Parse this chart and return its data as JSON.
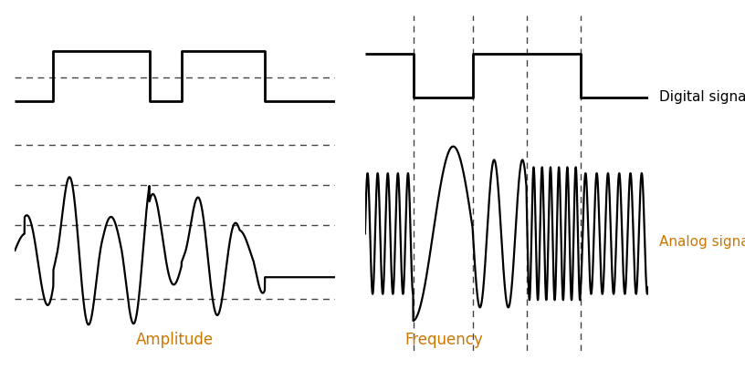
{
  "fig_width": 8.16,
  "fig_height": 4.28,
  "dpi": 100,
  "bg_color": "#ffffff",
  "signal_color": "#000000",
  "dashed_color": "#444444",
  "label_color_orange": "#cc7700",
  "label_color_black": "#000000",
  "amplitude_label": "Amplitude",
  "frequency_label": "Frequency",
  "digital_label": "Digital signal",
  "analog_label": "Analog signal",
  "line_width": 2.0,
  "dashed_linewidth": 1.0,
  "signal_linewidth": 1.6
}
